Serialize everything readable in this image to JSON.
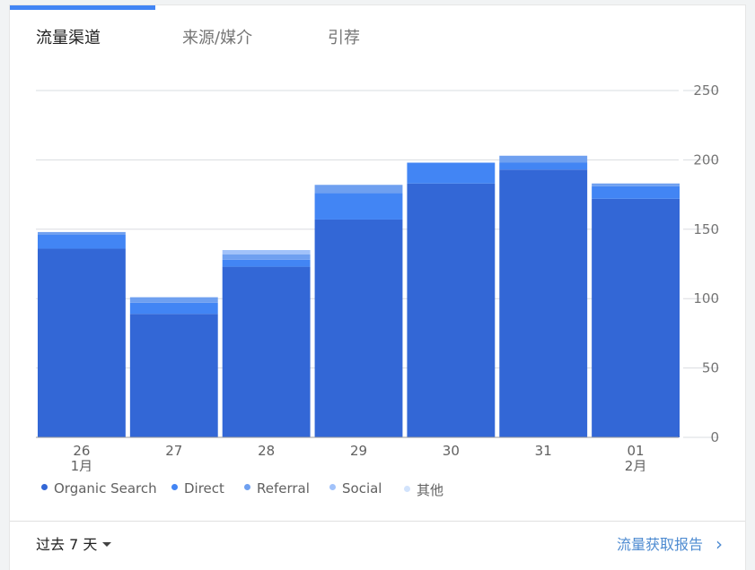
{
  "tabs": [
    {
      "label": "流量渠道",
      "active": true
    },
    {
      "label": "来源/媒介",
      "active": false
    },
    {
      "label": "引荐",
      "active": false
    }
  ],
  "chart_data": {
    "type": "bar",
    "stacked": true,
    "categories": [
      "26",
      "27",
      "28",
      "29",
      "30",
      "31",
      "01"
    ],
    "category_sublabels": [
      "1月",
      "",
      "",
      "",
      "",
      "",
      "2月"
    ],
    "yticks": [
      0,
      50,
      100,
      150,
      200,
      250
    ],
    "ylim": [
      0,
      250
    ],
    "y_axis_side": "right",
    "grid": true,
    "legend_position": "bottom-left",
    "series": [
      {
        "name": "Organic Search",
        "color": "#3367d6",
        "values": [
          136,
          89,
          123,
          157,
          183,
          193,
          172
        ]
      },
      {
        "name": "Direct",
        "color": "#4285f4",
        "values": [
          10,
          8,
          5,
          19,
          15,
          5,
          9
        ]
      },
      {
        "name": "Referral",
        "color": "#6fa0f0",
        "values": [
          2,
          4,
          4,
          6,
          0,
          5,
          2
        ]
      },
      {
        "name": "Social",
        "color": "#a1c2fa",
        "values": [
          0,
          0,
          3,
          0,
          0,
          0,
          0
        ]
      },
      {
        "name": "其他",
        "color": "#d2e3fc",
        "values": [
          0,
          0,
          0,
          0,
          0,
          0,
          0
        ]
      }
    ]
  },
  "footer": {
    "range_label": "过去 7 天",
    "report_link": "流量获取报告"
  }
}
